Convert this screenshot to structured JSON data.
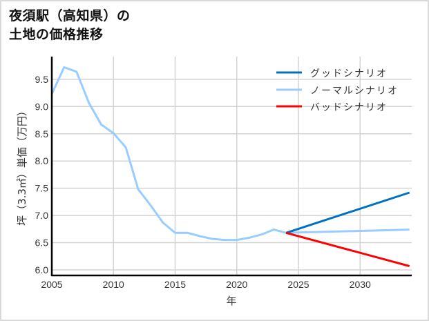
{
  "title": {
    "line1": "夜須駅（高知県）の",
    "line2": "土地の価格推移"
  },
  "colors": {
    "good": "#0070c0",
    "normal": "#99ccff",
    "bad": "#ff0000",
    "grid": "#d3d3d3",
    "axis": "#000000"
  },
  "chart_data": {
    "type": "line",
    "title": "夜須駅（高知県）の土地の価格推移",
    "xlabel": "年",
    "ylabel": "坪（3.3㎡）単価（万円）",
    "xlim": [
      2005,
      2034
    ],
    "ylim": [
      5.89,
      9.92
    ],
    "xticks": [
      2005,
      2010,
      2015,
      2020,
      2025,
      2030
    ],
    "yticks": [
      6.0,
      6.5,
      7.0,
      7.5,
      8.0,
      8.5,
      9.0,
      9.5
    ],
    "xtick_labels": [
      "2005",
      "2010",
      "2015",
      "2020",
      "2025",
      "2030"
    ],
    "ytick_labels": [
      "6.0",
      "6.5",
      "7.0",
      "7.5",
      "8.0",
      "8.5",
      "9.0",
      "9.5"
    ],
    "grid": true,
    "legend_position": "upper right",
    "series": [
      {
        "name": "グッドシナリオ",
        "key": "good",
        "x": [
          2024,
          2034
        ],
        "values": [
          6.68,
          7.42
        ]
      },
      {
        "name": "ノーマルシナリオ",
        "key": "normal",
        "x": [
          2005,
          2006,
          2007,
          2008,
          2009,
          2010,
          2011,
          2012,
          2013,
          2014,
          2015,
          2016,
          2017,
          2018,
          2019,
          2020,
          2021,
          2022,
          2023,
          2024,
          2034
        ],
        "values": [
          9.23,
          9.72,
          9.64,
          9.07,
          8.67,
          8.51,
          8.25,
          7.48,
          7.19,
          6.87,
          6.68,
          6.68,
          6.62,
          6.57,
          6.55,
          6.55,
          6.59,
          6.65,
          6.74,
          6.68,
          6.74
        ]
      },
      {
        "name": "バッドシナリオ",
        "key": "bad",
        "x": [
          2024,
          2034
        ],
        "values": [
          6.68,
          6.07
        ]
      }
    ]
  }
}
